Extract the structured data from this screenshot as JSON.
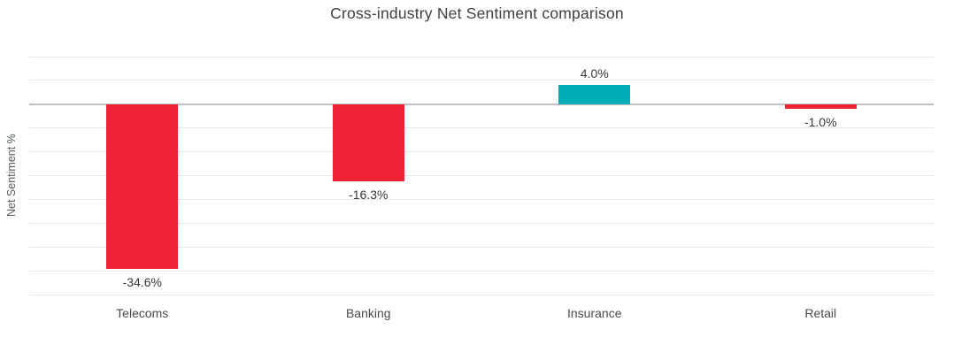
{
  "chart_data": {
    "type": "bar",
    "title": "Cross-industry Net Sentiment comparison",
    "ylabel": "Net Sentiment %",
    "xlabel": "",
    "categories": [
      "Telecoms",
      "Banking",
      "Insurance",
      "Retail"
    ],
    "values": [
      -34.6,
      -16.3,
      4.0,
      -1.0
    ],
    "value_labels": [
      "-34.6%",
      "-16.3%",
      "4.0%",
      "-1.0%"
    ],
    "ylim": [
      -40,
      10
    ],
    "grid_step": 5,
    "grid": true,
    "legend": false,
    "colors": {
      "positive": "#00aeb5",
      "negative": "#ee2435"
    }
  }
}
